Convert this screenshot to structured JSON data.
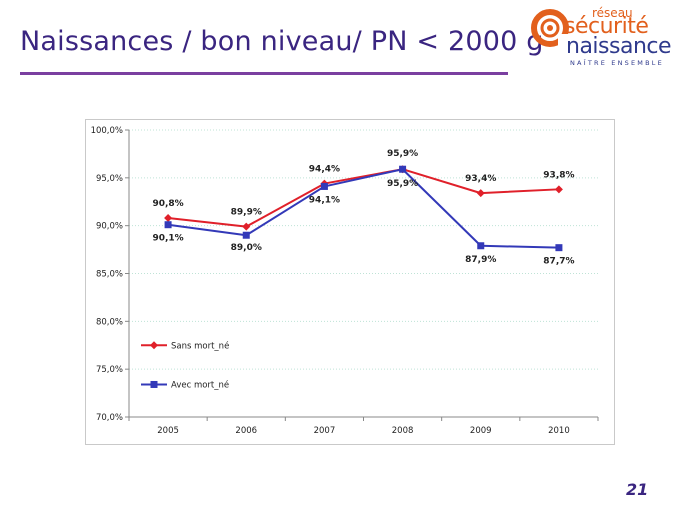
{
  "slide": {
    "title": "Naissances / bon niveau/ PN < 2000 g",
    "page_number": "21"
  },
  "logo": {
    "line_top": "réseau",
    "line1": "sécurité",
    "line2": "naissance",
    "tagline": "NAÎTRE ENSEMBLE",
    "colors": {
      "orange": "#e2601d",
      "navy": "#2f3a8c"
    }
  },
  "chart_data": {
    "type": "line",
    "categories": [
      "2005",
      "2006",
      "2007",
      "2008",
      "2009",
      "2010"
    ],
    "series": [
      {
        "name": "Sans mort_né",
        "color": "#e0202a",
        "marker": "diamond",
        "values": [
          90.8,
          89.9,
          94.4,
          95.9,
          93.4,
          93.8
        ],
        "labels": [
          "90,8%",
          "89,9%",
          "94,4%",
          "95,9%",
          "93,4%",
          "93,8%"
        ]
      },
      {
        "name": "Avec mort_né",
        "color": "#3339b8",
        "marker": "square",
        "values": [
          90.1,
          89.0,
          94.1,
          95.9,
          87.9,
          87.7
        ],
        "labels": [
          "90,1%",
          "89,0%",
          "94,1%",
          "95,9%",
          "87,9%",
          "87,7%"
        ]
      }
    ],
    "ylim": [
      70,
      100
    ],
    "yticks": [
      70,
      75,
      80,
      85,
      90,
      95,
      100
    ],
    "ytick_labels": [
      "70,0%",
      "75,0%",
      "80,0%",
      "85,0%",
      "90,0%",
      "95,0%",
      "100,0%"
    ],
    "grid": true,
    "legend_position": "bottom-left"
  }
}
